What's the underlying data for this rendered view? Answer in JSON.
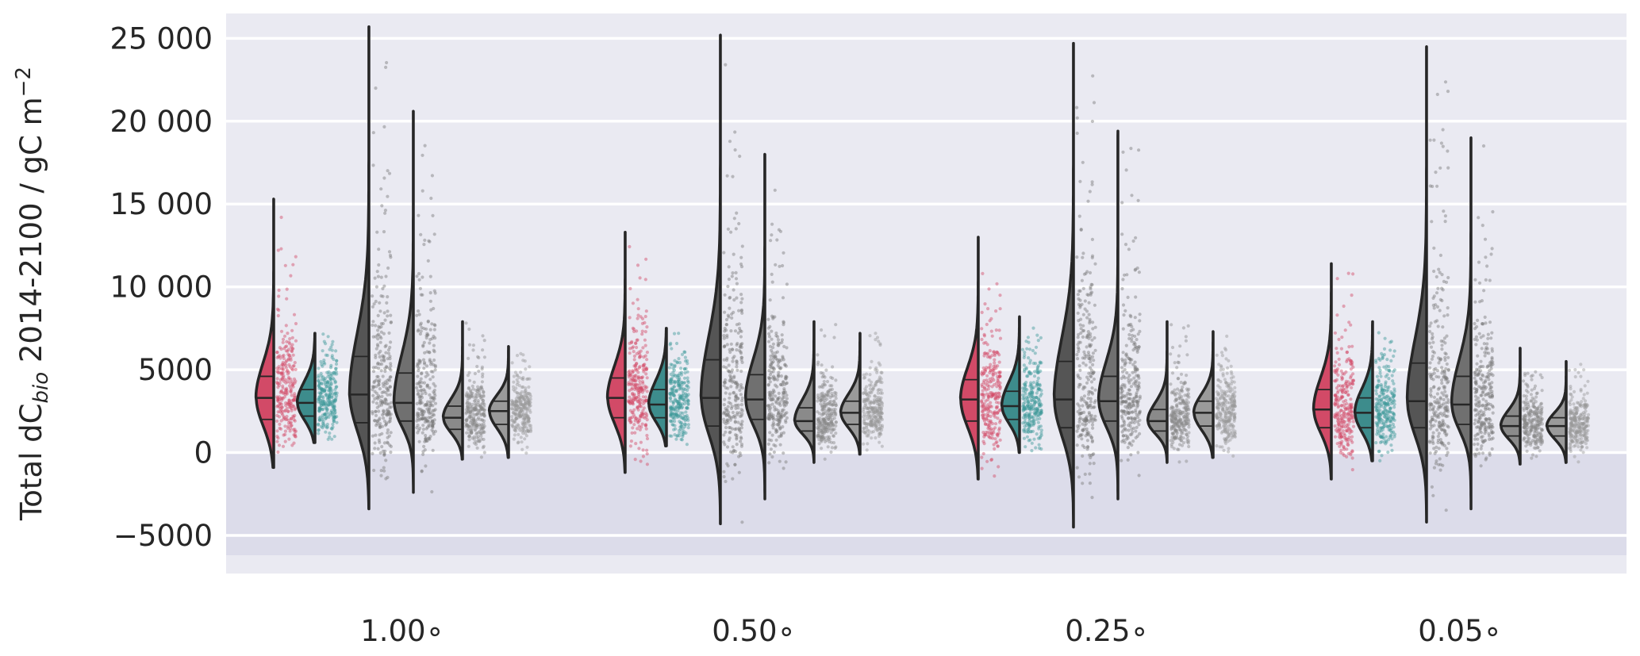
{
  "chart_data": {
    "type": "violin",
    "ylabel_parts": {
      "prefix": "Total dC",
      "subscript": "bio",
      "middle": " 2014-2100 / gC m",
      "superscript": "−2"
    },
    "ylim": [
      -7300,
      26500
    ],
    "yticks": [
      -5000,
      0,
      5000,
      10000,
      15000,
      20000,
      25000
    ],
    "ytick_labels": [
      "−5000",
      "0",
      "5000",
      "10 000",
      "15 000",
      "20 000",
      "25 000"
    ],
    "negative_band": [
      -6200,
      0
    ],
    "grid": true,
    "categories": [
      "1.00∘",
      "0.50∘",
      "0.25∘",
      "0.05∘"
    ],
    "colors": {
      "background": "#eaeaf2",
      "negative_band": "#dcdcea",
      "grid": "#ffffff",
      "outline": "#262626",
      "series": [
        "#d24a67",
        "#3d8c8c",
        "#555555",
        "#707070",
        "#8a8a8a",
        "#9a9a9a"
      ],
      "points": [
        "#d24a67",
        "#3d9a9a",
        "#7a7a7a",
        "#7a7a7a",
        "#8a8a8a",
        "#9a9a9a"
      ]
    },
    "groups": [
      {
        "category": "1.00∘",
        "violins": [
          {
            "min": -900,
            "max": 15300,
            "median": 3300,
            "q1": 2000,
            "q3": 4600
          },
          {
            "min": 600,
            "max": 7200,
            "median": 3000,
            "q1": 2200,
            "q3": 3800
          },
          {
            "min": -3400,
            "max": 25700,
            "median": 3500,
            "q1": 1800,
            "q3": 5800
          },
          {
            "min": -2400,
            "max": 20600,
            "median": 3000,
            "q1": 1900,
            "q3": 4800
          },
          {
            "min": -400,
            "max": 7900,
            "median": 2100,
            "q1": 1400,
            "q3": 2800
          },
          {
            "min": -300,
            "max": 6400,
            "median": 2500,
            "q1": 1700,
            "q3": 3100
          }
        ]
      },
      {
        "category": "0.50∘",
        "violins": [
          {
            "min": -1200,
            "max": 13300,
            "median": 3300,
            "q1": 2100,
            "q3": 4500
          },
          {
            "min": 400,
            "max": 7500,
            "median": 2900,
            "q1": 2100,
            "q3": 3800
          },
          {
            "min": -4300,
            "max": 25200,
            "median": 3300,
            "q1": 1600,
            "q3": 5600
          },
          {
            "min": -2800,
            "max": 18000,
            "median": 3200,
            "q1": 2000,
            "q3": 4700
          },
          {
            "min": -600,
            "max": 7900,
            "median": 1900,
            "q1": 1300,
            "q3": 2700
          },
          {
            "min": -100,
            "max": 7200,
            "median": 2400,
            "q1": 1700,
            "q3": 3100
          }
        ]
      },
      {
        "category": "0.25∘",
        "violins": [
          {
            "min": -1600,
            "max": 13000,
            "median": 3200,
            "q1": 1900,
            "q3": 4400
          },
          {
            "min": 0,
            "max": 8200,
            "median": 2800,
            "q1": 2000,
            "q3": 3700
          },
          {
            "min": -4500,
            "max": 24700,
            "median": 3200,
            "q1": 1500,
            "q3": 5500
          },
          {
            "min": -2800,
            "max": 19400,
            "median": 3100,
            "q1": 1900,
            "q3": 4600
          },
          {
            "min": -600,
            "max": 7900,
            "median": 1900,
            "q1": 1300,
            "q3": 2600
          },
          {
            "min": -300,
            "max": 7300,
            "median": 2400,
            "q1": 1600,
            "q3": 3100
          }
        ]
      },
      {
        "category": "0.05∘",
        "violins": [
          {
            "min": -1600,
            "max": 11400,
            "median": 2600,
            "q1": 1500,
            "q3": 3800
          },
          {
            "min": -500,
            "max": 7900,
            "median": 2400,
            "q1": 1500,
            "q3": 3300
          },
          {
            "min": -4200,
            "max": 24500,
            "median": 3100,
            "q1": 1500,
            "q3": 5400
          },
          {
            "min": -3400,
            "max": 19000,
            "median": 2900,
            "q1": 1700,
            "q3": 4600
          },
          {
            "min": -700,
            "max": 6300,
            "median": 1600,
            "q1": 1000,
            "q3": 2200
          },
          {
            "min": -600,
            "max": 5500,
            "median": 1600,
            "q1": 1000,
            "q3": 2100
          }
        ]
      }
    ]
  }
}
